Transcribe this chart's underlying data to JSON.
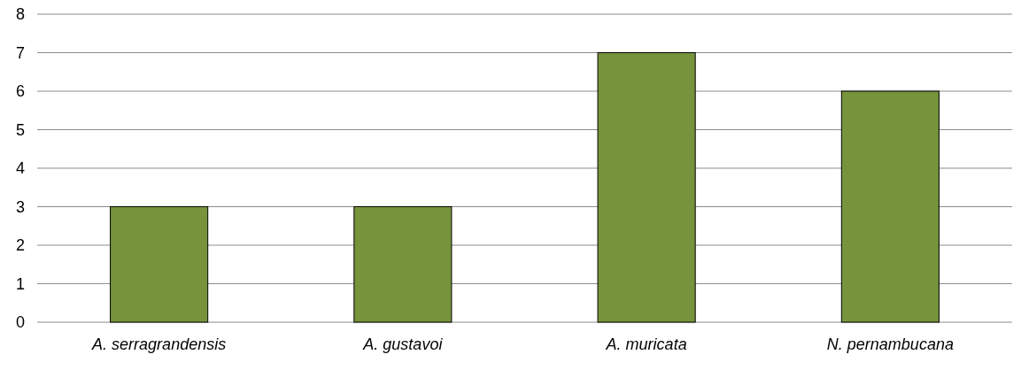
{
  "chart_data": {
    "type": "bar",
    "categories": [
      "A. serragrandensis",
      "A. gustavoi",
      "A. muricata",
      "N. pernambucana"
    ],
    "values": [
      3,
      3,
      7,
      6
    ],
    "color": "#77933c",
    "ylim": [
      0,
      8
    ],
    "yticks": [
      0,
      1,
      2,
      3,
      4,
      5,
      6,
      7,
      8
    ],
    "grid": "y"
  }
}
